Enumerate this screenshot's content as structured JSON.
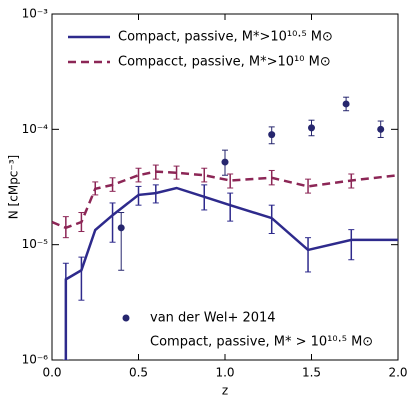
{
  "chart_data": {
    "type": "line",
    "xlabel": "z",
    "ylabel": "N [cMpc⁻³]",
    "xlim": [
      0,
      2
    ],
    "xticks": [
      {
        "value": 0,
        "label": "0.0"
      },
      {
        "value": 0.5,
        "label": "0.5"
      },
      {
        "value": 1,
        "label": "1.0"
      },
      {
        "value": 1.5,
        "label": "1.5"
      },
      {
        "value": 2,
        "label": "2.0"
      }
    ],
    "ylim": [
      1e-06,
      0.001
    ],
    "yticks": [
      {
        "value": 1e-06,
        "label": "10⁻⁶"
      },
      {
        "value": 1e-05,
        "label": "10⁻⁵"
      },
      {
        "value": 0.0001,
        "label": "10⁻⁴"
      },
      {
        "value": 0.001,
        "label": "10⁻³"
      }
    ],
    "yscale": "log",
    "legend": "upper left",
    "legend2": "lower center",
    "series": [
      {
        "name": "Compact, passive, M*>10¹⁰·⁵ M⊙",
        "type": "line",
        "style": "solid",
        "color": "#2e2a8c",
        "x": [
          0.08,
          0.08,
          0.17,
          0.25,
          0.35,
          0.5,
          0.6,
          0.72,
          0.88,
          1.03,
          1.27,
          1.48,
          1.73,
          2.0
        ],
        "values": [
          1e-06,
          5e-06,
          6e-06,
          1.34e-05,
          1.8e-05,
          2.7e-05,
          2.8e-05,
          3.1e-05,
          2.6e-05,
          2.2e-05,
          1.7e-05,
          9e-06,
          1.1e-05,
          1.1e-05
        ],
        "lower": [
          null,
          1e-06,
          3.3e-06,
          null,
          1.05e-05,
          2.2e-05,
          2.3e-05,
          null,
          2e-05,
          1.6e-05,
          1.25e-05,
          5.8e-06,
          7.4e-06,
          null
        ],
        "upper": [
          null,
          6.9e-06,
          7.8e-06,
          null,
          2.3e-05,
          3.2e-05,
          3.3e-05,
          null,
          3.3e-05,
          2.8e-05,
          2.2e-05,
          1.15e-05,
          1.35e-05,
          null
        ]
      },
      {
        "name": "Compacct, passive, M*>10¹⁰ M⊙",
        "type": "line",
        "style": "dashed",
        "color": "#8c2656",
        "x": [
          0,
          0.08,
          0.17,
          0.25,
          0.35,
          0.5,
          0.6,
          0.72,
          0.88,
          1.03,
          1.27,
          1.48,
          1.73,
          2.0
        ],
        "values": [
          1.57e-05,
          1.4e-05,
          1.57e-05,
          3.05e-05,
          3.3e-05,
          4e-05,
          4.3e-05,
          4.2e-05,
          4e-05,
          3.6e-05,
          3.8e-05,
          3.2e-05,
          3.6e-05,
          4e-05
        ],
        "lower": [
          null,
          1.15e-05,
          1.3e-05,
          2.7e-05,
          2.9e-05,
          3.5e-05,
          3.7e-05,
          3.7e-05,
          3.5e-05,
          3.1e-05,
          3.3e-05,
          2.8e-05,
          3.1e-05,
          null
        ],
        "upper": [
          null,
          1.75e-05,
          1.9e-05,
          3.5e-05,
          3.8e-05,
          4.6e-05,
          4.9e-05,
          4.8e-05,
          4.6e-05,
          4.1e-05,
          4.4e-05,
          3.7e-05,
          4.1e-05,
          null
        ]
      },
      {
        "name": "van der Wel+ 2014",
        "type": "scatter",
        "color": "#26266e",
        "x": [
          0.4,
          1.0,
          1.27,
          1.5,
          1.7,
          1.9
        ],
        "values": [
          1.4e-05,
          5.2e-05,
          9e-05,
          0.000103,
          0.000166,
          0.0001
        ],
        "lower": [
          6e-06,
          4e-05,
          7.5e-05,
          8.8e-05,
          0.000145,
          8.5e-05
        ],
        "upper": [
          1.9e-05,
          6.6e-05,
          0.000105,
          0.00012,
          0.00019,
          0.000118
        ]
      }
    ],
    "legend2_note": "Compact, passive, M* > 10¹⁰·⁵ M⊙"
  }
}
